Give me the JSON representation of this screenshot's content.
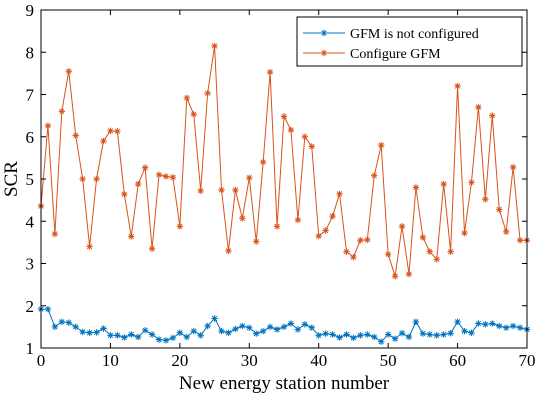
{
  "chart_data": {
    "type": "line",
    "title": "",
    "xlabel": "New energy station number",
    "ylabel": "SCR",
    "xlim": [
      0,
      70
    ],
    "ylim": [
      1,
      9
    ],
    "x_ticks": [
      0,
      10,
      20,
      30,
      40,
      50,
      60,
      70
    ],
    "y_ticks": [
      1,
      2,
      3,
      4,
      5,
      6,
      7,
      8,
      9
    ],
    "grid": false,
    "legend_position": "top-right",
    "x": [
      0,
      1,
      2,
      3,
      4,
      5,
      6,
      7,
      8,
      9,
      10,
      11,
      12,
      13,
      14,
      15,
      16,
      17,
      18,
      19,
      20,
      21,
      22,
      23,
      24,
      25,
      26,
      27,
      28,
      29,
      30,
      31,
      32,
      33,
      34,
      35,
      36,
      37,
      38,
      39,
      40,
      41,
      42,
      43,
      44,
      45,
      46,
      47,
      48,
      49,
      50,
      51,
      52,
      53,
      54,
      55,
      56,
      57,
      58,
      59,
      60,
      61,
      62,
      63,
      64,
      65,
      66,
      67,
      68,
      69,
      70
    ],
    "series": [
      {
        "name": "GFM is not configured",
        "color": "#0072BD",
        "marker": "*",
        "values": [
          1.92,
          1.92,
          1.5,
          1.62,
          1.6,
          1.5,
          1.38,
          1.36,
          1.37,
          1.46,
          1.3,
          1.3,
          1.25,
          1.32,
          1.26,
          1.42,
          1.32,
          1.2,
          1.18,
          1.24,
          1.36,
          1.26,
          1.4,
          1.3,
          1.52,
          1.7,
          1.4,
          1.36,
          1.45,
          1.52,
          1.48,
          1.34,
          1.4,
          1.5,
          1.44,
          1.5,
          1.58,
          1.44,
          1.56,
          1.48,
          1.3,
          1.34,
          1.32,
          1.25,
          1.32,
          1.24,
          1.3,
          1.32,
          1.26,
          1.15,
          1.32,
          1.22,
          1.35,
          1.26,
          1.62,
          1.34,
          1.32,
          1.3,
          1.32,
          1.35,
          1.62,
          1.4,
          1.36,
          1.58,
          1.56,
          1.58,
          1.52,
          1.48,
          1.52,
          1.48,
          1.44
        ]
      },
      {
        "name": "Configure GFM",
        "color": "#D95319",
        "marker": "*",
        "values": [
          4.36,
          6.26,
          3.7,
          6.6,
          7.55,
          6.03,
          5.0,
          3.4,
          5.0,
          5.9,
          6.14,
          6.13,
          4.64,
          3.64,
          4.88,
          5.27,
          3.35,
          5.1,
          5.06,
          5.04,
          3.88,
          6.92,
          6.53,
          4.72,
          7.03,
          8.15,
          4.74,
          3.3,
          4.74,
          4.07,
          5.03,
          3.52,
          5.4,
          7.53,
          3.88,
          6.48,
          6.16,
          4.03,
          6.0,
          5.77,
          3.65,
          3.78,
          4.12,
          4.65,
          3.28,
          3.15,
          3.55,
          3.56,
          5.08,
          5.8,
          3.22,
          2.7,
          3.88,
          2.75,
          4.8,
          3.62,
          3.28,
          3.1,
          4.88,
          3.28,
          7.2,
          3.72,
          4.92,
          6.7,
          4.52,
          6.5,
          4.28,
          3.75,
          5.28,
          3.55,
          3.55
        ]
      }
    ]
  }
}
